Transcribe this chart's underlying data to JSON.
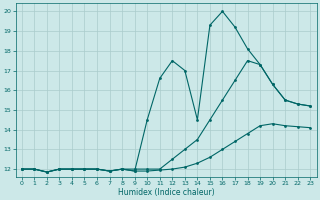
{
  "bg_color": "#cce8e8",
  "grid_color": "#aacccc",
  "line_color": "#006666",
  "xlabel": "Humidex (Indice chaleur)",
  "xlim": [
    -0.5,
    23.5
  ],
  "ylim": [
    11.6,
    20.4
  ],
  "yticks": [
    12,
    13,
    14,
    15,
    16,
    17,
    18,
    19,
    20
  ],
  "xticks": [
    0,
    1,
    2,
    3,
    4,
    5,
    6,
    7,
    8,
    9,
    10,
    11,
    12,
    13,
    14,
    15,
    16,
    17,
    18,
    19,
    20,
    21,
    22,
    23
  ],
  "line1_x": [
    0,
    1,
    2,
    3,
    4,
    5,
    6,
    7,
    8,
    9,
    10,
    11,
    12,
    13,
    14,
    15,
    16,
    17,
    18,
    19,
    20,
    21,
    22,
    23
  ],
  "line1_y": [
    12.0,
    12.0,
    11.85,
    12.0,
    12.0,
    12.0,
    12.0,
    11.9,
    12.0,
    11.9,
    14.5,
    16.6,
    17.5,
    17.0,
    14.5,
    19.3,
    20.0,
    19.2,
    18.1,
    17.3,
    16.3,
    15.5,
    15.3,
    15.2
  ],
  "line2_x": [
    0,
    1,
    2,
    3,
    4,
    5,
    6,
    7,
    8,
    9,
    10,
    11,
    12,
    13,
    14,
    15,
    16,
    17,
    18,
    19,
    20,
    21,
    22,
    23
  ],
  "line2_y": [
    12.0,
    12.0,
    11.85,
    12.0,
    12.0,
    12.0,
    12.0,
    11.9,
    12.0,
    12.0,
    12.0,
    12.0,
    12.5,
    13.0,
    13.5,
    14.5,
    15.5,
    16.5,
    17.5,
    17.3,
    16.3,
    15.5,
    15.3,
    15.2
  ],
  "line3_x": [
    0,
    1,
    2,
    3,
    4,
    5,
    6,
    7,
    8,
    9,
    10,
    11,
    12,
    13,
    14,
    15,
    16,
    17,
    18,
    19,
    20,
    21,
    22,
    23
  ],
  "line3_y": [
    12.0,
    12.0,
    11.85,
    12.0,
    12.0,
    12.0,
    12.0,
    11.9,
    12.0,
    11.9,
    11.9,
    11.95,
    12.0,
    12.1,
    12.3,
    12.6,
    13.0,
    13.4,
    13.8,
    14.2,
    14.3,
    14.2,
    14.15,
    14.1
  ],
  "marker_size": 2.0,
  "line_width": 0.8,
  "tick_fontsize": 4.5,
  "xlabel_fontsize": 5.5
}
